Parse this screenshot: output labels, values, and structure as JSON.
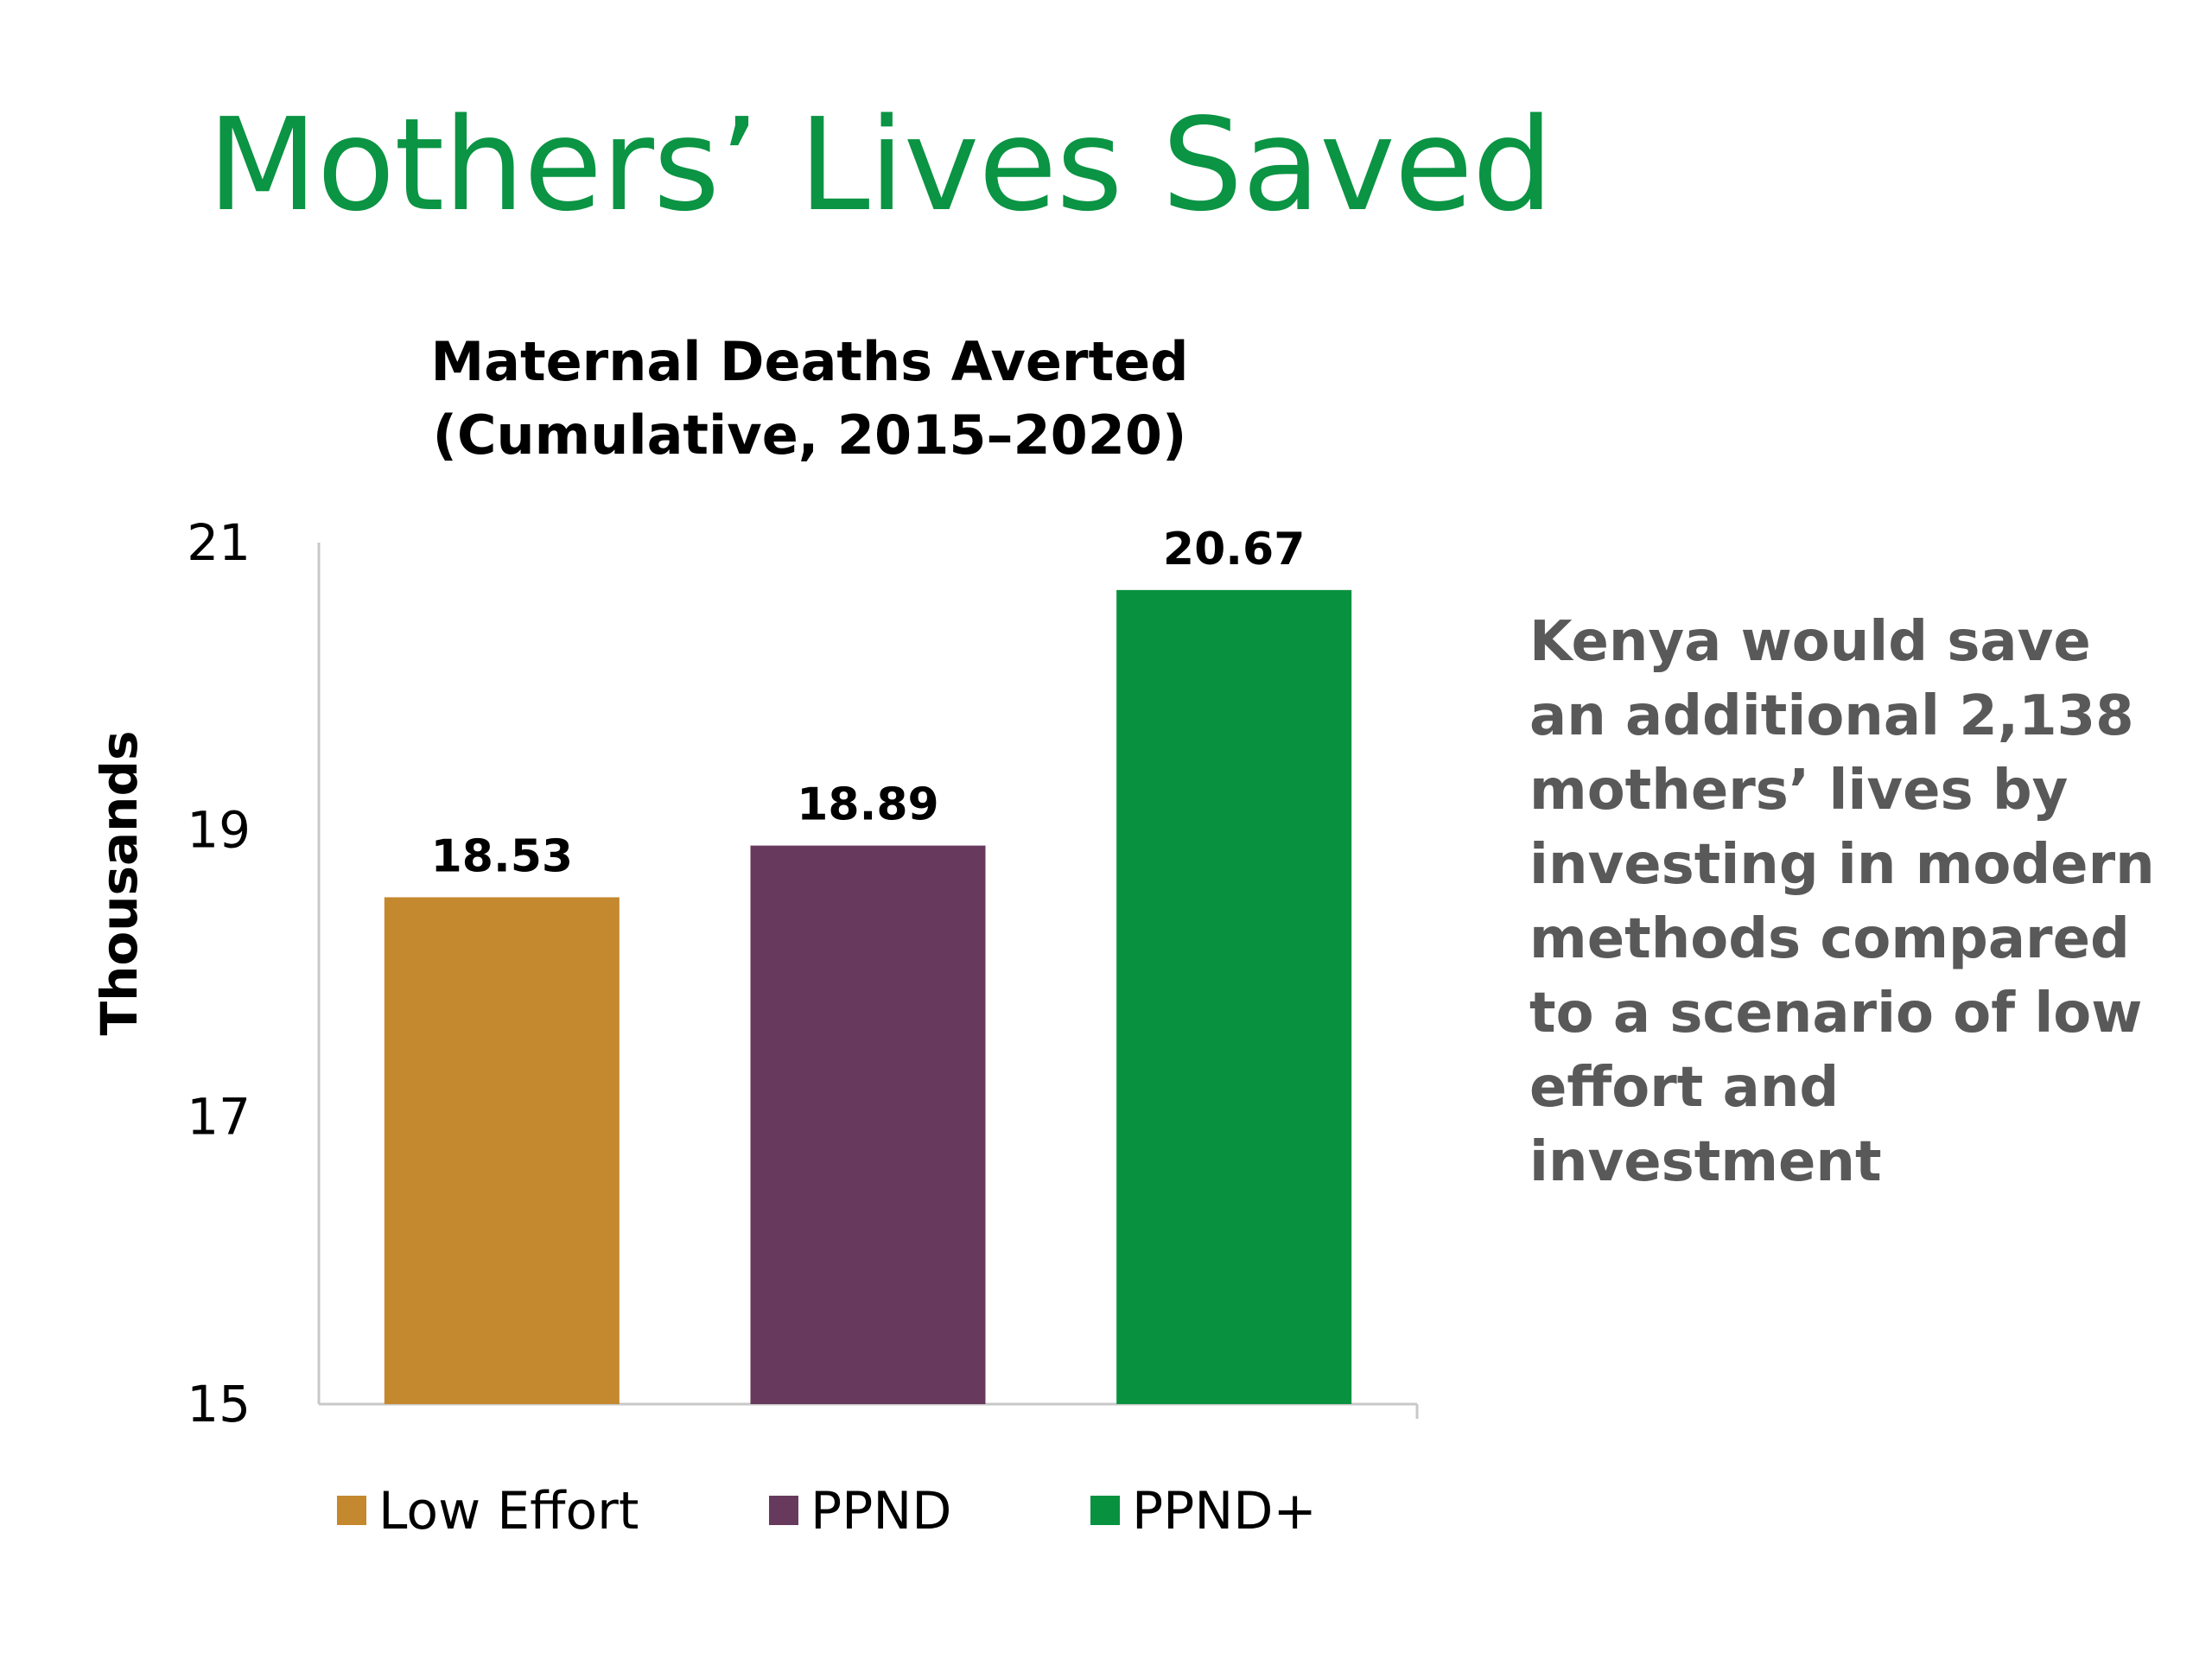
{
  "slide": {
    "title": "Mothers’ Lives Saved",
    "note": "Kenya would save an additional 2,138 mothers’ lives by investing in modern methods compared to a scenario of low effort and investment",
    "title_color": "#0a9443",
    "note_color": "#595959"
  },
  "chart_data": {
    "type": "bar",
    "title_lines": [
      "Maternal Deaths Averted",
      "(Cumulative, 2015–2020)"
    ],
    "ylabel": "Thousands",
    "xlabel": "",
    "ylim": [
      15,
      21
    ],
    "yticks": [
      15,
      17,
      19,
      21
    ],
    "grid": false,
    "legend_position": "bottom",
    "categories": [
      "Low Effort",
      "PPND",
      "PPND+"
    ],
    "values": [
      18.53,
      18.89,
      20.67
    ],
    "value_labels": [
      "18.53",
      "18.89",
      "20.67"
    ],
    "colors": [
      "#c4882e",
      "#673a5d",
      "#08923f"
    ]
  }
}
